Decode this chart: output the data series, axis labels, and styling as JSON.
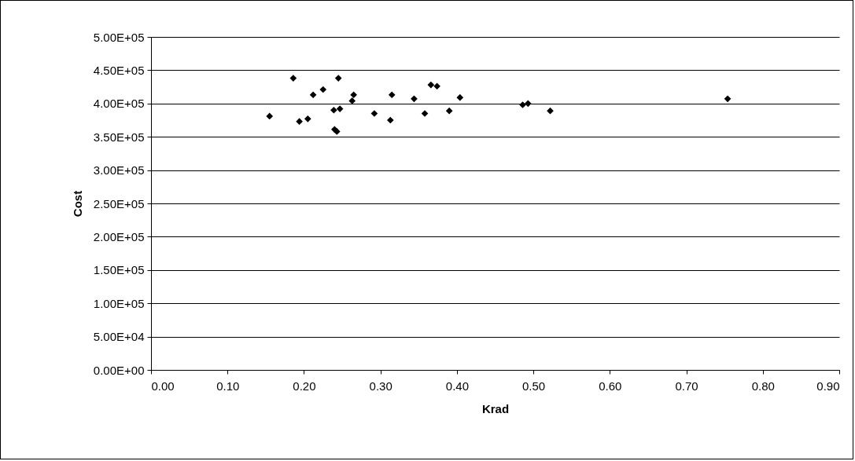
{
  "chart_data": {
    "type": "scatter",
    "xlabel": "Krad",
    "ylabel": "Cost",
    "x": [
      0.155,
      0.194,
      0.205,
      0.239,
      0.247,
      0.24,
      0.243,
      0.292,
      0.313,
      0.358,
      0.39,
      0.186,
      0.212,
      0.225,
      0.245,
      0.265,
      0.263,
      0.315,
      0.344,
      0.366,
      0.374,
      0.404,
      0.486,
      0.493,
      0.522,
      0.754
    ],
    "series": [
      {
        "color": "#000000",
        "values": [
          381000,
          373000,
          377000,
          390000,
          392000,
          361000,
          358000,
          385000,
          375000,
          385000,
          389000,
          438000,
          413000,
          421000,
          438000,
          413000,
          404000,
          413000,
          407000,
          428000,
          426000,
          409000,
          398000,
          400000,
          389000,
          407000
        ]
      }
    ],
    "xlim": [
      0,
      0.9
    ],
    "xticks": [
      {
        "value": 0,
        "label": "0.00"
      },
      {
        "value": 0.1,
        "label": "0.10"
      },
      {
        "value": 0.2,
        "label": "0.20"
      },
      {
        "value": 0.3,
        "label": "0.30"
      },
      {
        "value": 0.4,
        "label": "0.40"
      },
      {
        "value": 0.5,
        "label": "0.50"
      },
      {
        "value": 0.6,
        "label": "0.60"
      },
      {
        "value": 0.7,
        "label": "0.70"
      },
      {
        "value": 0.8,
        "label": "0.80"
      },
      {
        "value": 0.9,
        "label": "0.90"
      }
    ],
    "ylim": [
      0,
      500000
    ],
    "yticks": [
      {
        "value": 0,
        "label": "0.00E+00"
      },
      {
        "value": 50000,
        "label": "5.00E+04"
      },
      {
        "value": 100000,
        "label": "1.00E+05"
      },
      {
        "value": 150000,
        "label": "1.50E+05"
      },
      {
        "value": 200000,
        "label": "2.00E+05"
      },
      {
        "value": 250000,
        "label": "2.50E+05"
      },
      {
        "value": 300000,
        "label": "3.00E+05"
      },
      {
        "value": 350000,
        "label": "3.50E+05"
      },
      {
        "value": 400000,
        "label": "4.00E+05"
      },
      {
        "value": 450000,
        "label": "4.50E+05"
      },
      {
        "value": 500000,
        "label": "5.00E+05"
      }
    ],
    "grid": "y",
    "marker": "diamond"
  }
}
